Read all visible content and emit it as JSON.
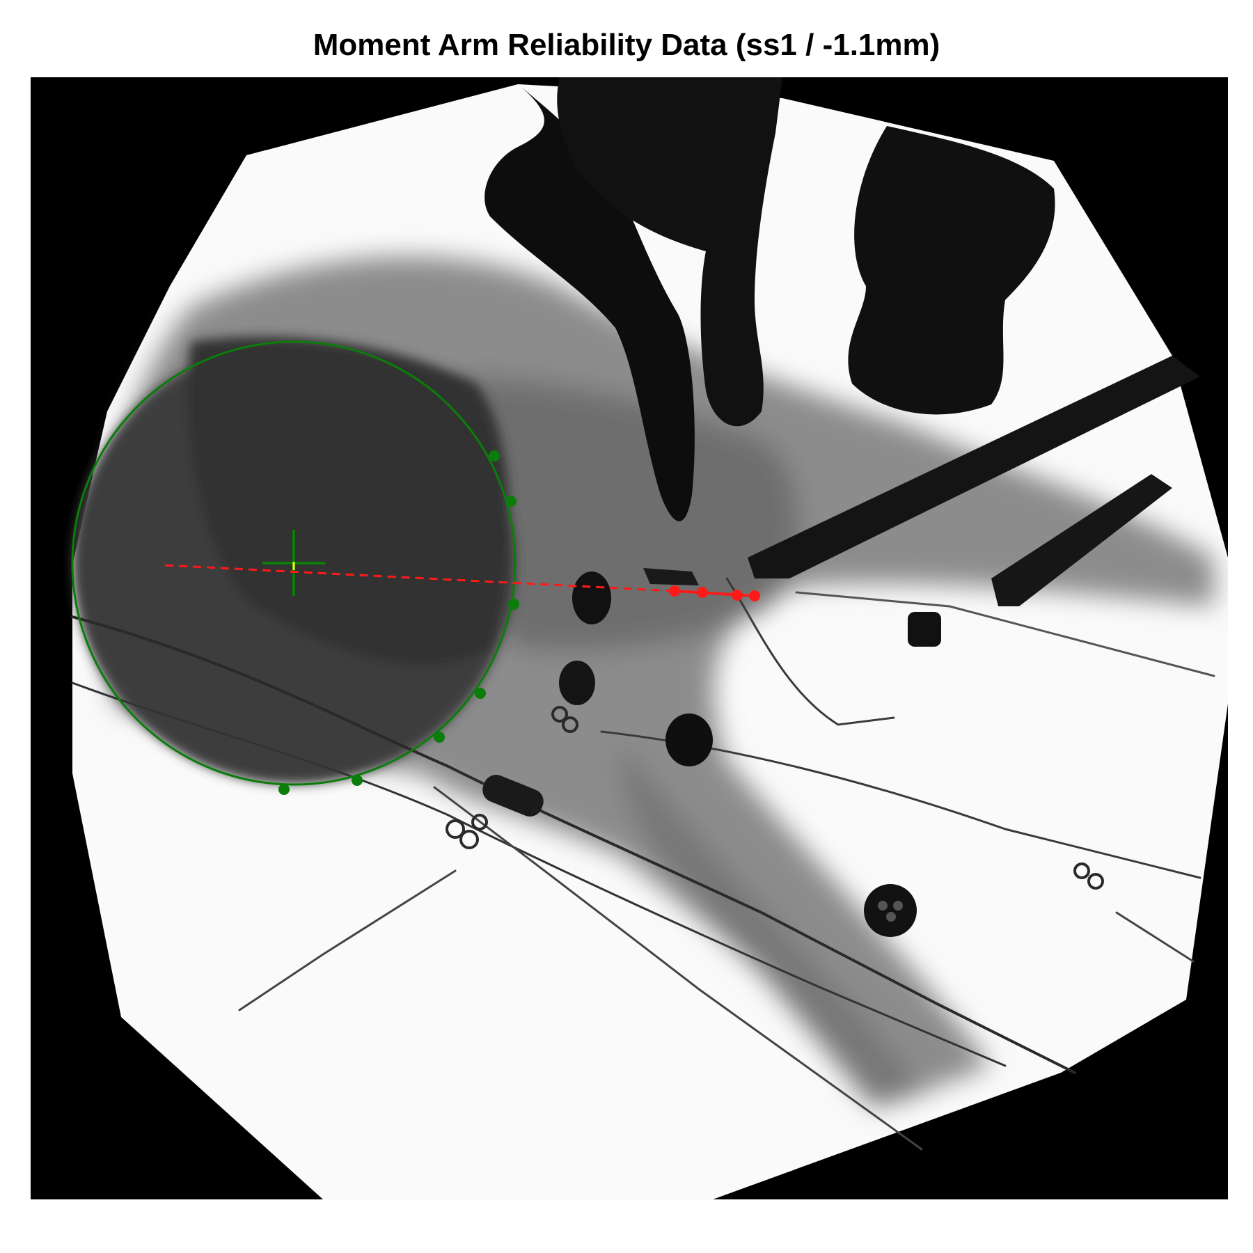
{
  "figure": {
    "title": "Moment Arm Reliability Data (ss1 / -1.1mm)"
  },
  "annotation": {
    "circle_color": "#0a7d0a",
    "line_color": "#ff1a1a",
    "crosshair_color": "#0a7d0a",
    "center_marker_color": "#ffff00",
    "circle_point_count": 8,
    "line_point_count": 4
  }
}
